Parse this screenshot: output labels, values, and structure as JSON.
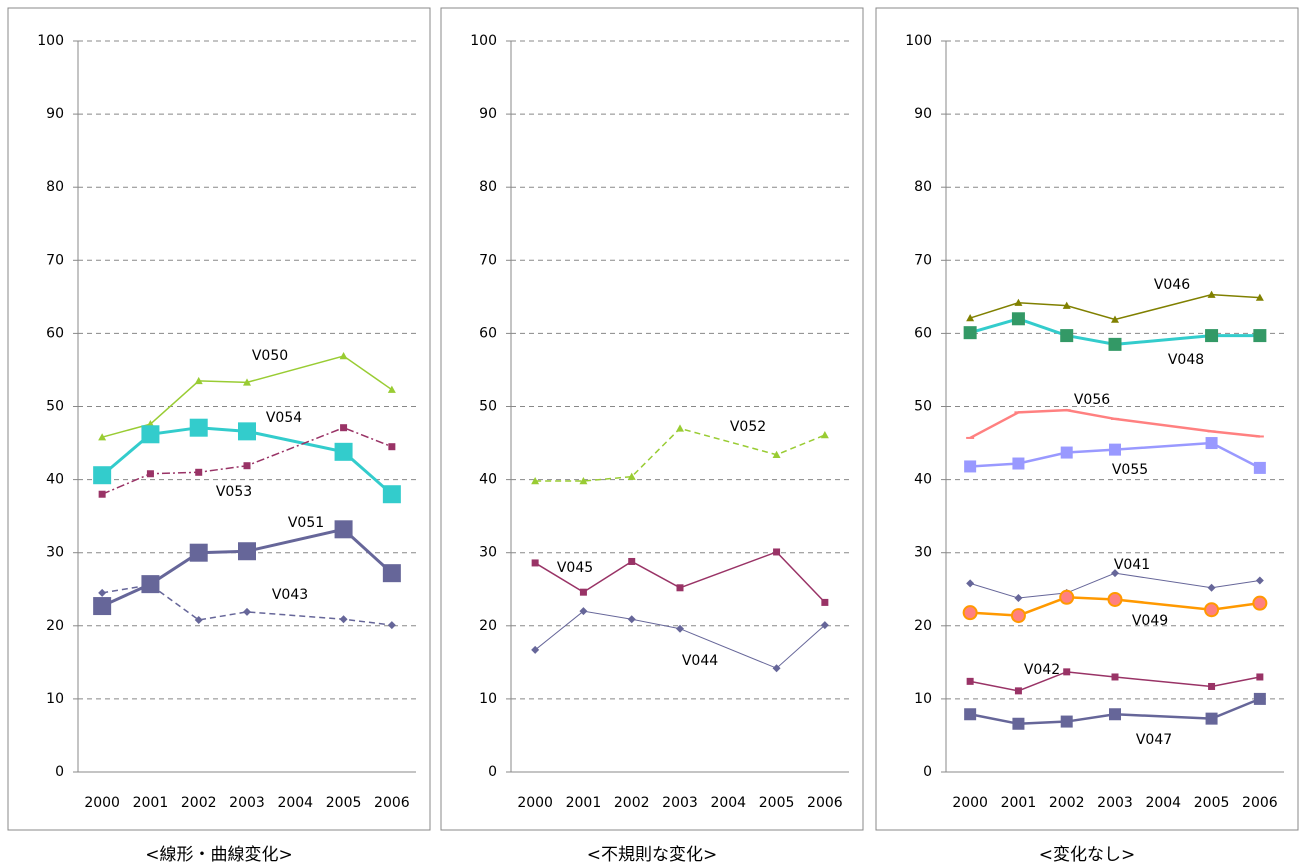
{
  "chart_data": [
    {
      "type": "line",
      "caption": "<線形・曲線変化>",
      "x": [
        2000,
        2001,
        2002,
        2003,
        2005,
        2006
      ],
      "xlim": [
        1999.5,
        2006.5
      ],
      "xticks": [
        2000,
        2001,
        2002,
        2003,
        2004,
        2005,
        2006
      ],
      "ylim": [
        0,
        100
      ],
      "yticks": [
        0,
        10,
        20,
        30,
        40,
        50,
        60,
        70,
        80,
        90,
        100
      ],
      "grid": true,
      "series": [
        {
          "name": "V050",
          "color": "#99cc33",
          "marker": "triangle",
          "marker_size": 8,
          "dash": "solid",
          "linewidth": 1.5,
          "values": [
            45.8,
            47.6,
            53.5,
            53.3,
            56.9,
            52.3
          ]
        },
        {
          "name": "V054",
          "color": "#33cccc",
          "marker": "square",
          "marker_size": 18,
          "dash": "solid",
          "linewidth": 3,
          "values": [
            40.6,
            46.2,
            47.1,
            46.6,
            43.8,
            38.0
          ]
        },
        {
          "name": "V053",
          "color": "#993366",
          "marker": "square",
          "marker_size": 7,
          "dash": "dashdot",
          "linewidth": 1.5,
          "values": [
            38.0,
            40.8,
            41.0,
            41.9,
            47.1,
            44.5
          ]
        },
        {
          "name": "V051",
          "color": "#666699",
          "marker": "square",
          "marker_size": 18,
          "dash": "solid",
          "linewidth": 3,
          "values": [
            22.7,
            25.7,
            30.0,
            30.2,
            33.2,
            27.2
          ]
        },
        {
          "name": "V043",
          "color": "#666699",
          "marker": "diamond",
          "marker_size": 8,
          "dash": "dashed",
          "linewidth": 1.5,
          "values": [
            24.5,
            25.6,
            20.8,
            21.9,
            20.9,
            20.1
          ]
        }
      ]
    },
    {
      "type": "line",
      "caption": "<不規則な変化>",
      "x": [
        2000,
        2001,
        2002,
        2003,
        2005,
        2006
      ],
      "xlim": [
        1999.5,
        2006.5
      ],
      "xticks": [
        2000,
        2001,
        2002,
        2003,
        2004,
        2005,
        2006
      ],
      "ylim": [
        0,
        100
      ],
      "yticks": [
        0,
        10,
        20,
        30,
        40,
        50,
        60,
        70,
        80,
        90,
        100
      ],
      "grid": true,
      "series": [
        {
          "name": "V052",
          "color": "#99cc33",
          "marker": "triangle",
          "marker_size": 8,
          "dash": "dashed",
          "linewidth": 1.5,
          "values": [
            39.8,
            39.8,
            40.4,
            47.0,
            43.4,
            46.1
          ]
        },
        {
          "name": "V045",
          "color": "#993366",
          "marker": "square",
          "marker_size": 7,
          "dash": "solid",
          "linewidth": 1.5,
          "values": [
            28.6,
            24.6,
            28.8,
            25.2,
            30.1,
            23.2
          ]
        },
        {
          "name": "V044",
          "color": "#666699",
          "marker": "diamond",
          "marker_size": 8,
          "dash": "solid",
          "linewidth": 1,
          "values": [
            16.7,
            22.0,
            20.9,
            19.6,
            14.2,
            20.1
          ]
        }
      ]
    },
    {
      "type": "line",
      "caption": "<変化なし>",
      "x": [
        2000,
        2001,
        2002,
        2003,
        2005,
        2006
      ],
      "xlim": [
        1999.5,
        2006.5
      ],
      "xticks": [
        2000,
        2001,
        2002,
        2003,
        2004,
        2005,
        2006
      ],
      "ylim": [
        0,
        100
      ],
      "yticks": [
        0,
        10,
        20,
        30,
        40,
        50,
        60,
        70,
        80,
        90,
        100
      ],
      "grid": true,
      "series": [
        {
          "name": "V046",
          "color": "#808000",
          "marker": "triangle",
          "marker_size": 8,
          "dash": "solid",
          "linewidth": 1.5,
          "values": [
            62.1,
            64.2,
            63.8,
            61.9,
            65.3,
            64.9
          ]
        },
        {
          "name": "V048",
          "color": "#33cccc",
          "marker_color": "#339966",
          "marker": "square",
          "marker_size": 13,
          "dash": "solid",
          "linewidth": 3,
          "values": [
            60.1,
            62.0,
            59.7,
            58.5,
            59.7,
            59.7
          ]
        },
        {
          "name": "V056",
          "color": "#ff8080",
          "marker": "dash",
          "marker_size": 8,
          "dash": "solid",
          "linewidth": 2.5,
          "values": [
            45.7,
            49.2,
            49.5,
            48.3,
            46.6,
            45.9
          ]
        },
        {
          "name": "V055",
          "color": "#9999ff",
          "marker": "square",
          "marker_size": 12,
          "dash": "solid",
          "linewidth": 2.5,
          "values": [
            41.8,
            42.2,
            43.7,
            44.1,
            45.0,
            41.6
          ]
        },
        {
          "name": "V041",
          "color": "#666699",
          "marker": "diamond",
          "marker_size": 8,
          "dash": "solid",
          "linewidth": 1,
          "values": [
            25.8,
            23.8,
            24.5,
            27.2,
            25.2,
            26.2
          ]
        },
        {
          "name": "V049",
          "color": "#ff9900",
          "marker_color": "#ff8080",
          "marker": "circle",
          "marker_size": 13,
          "dash": "solid",
          "linewidth": 2.5,
          "values": [
            21.8,
            21.4,
            23.9,
            23.6,
            22.2,
            23.1
          ]
        },
        {
          "name": "V042",
          "color": "#993366",
          "marker": "square",
          "marker_size": 7,
          "dash": "solid",
          "linewidth": 1.5,
          "values": [
            12.4,
            11.1,
            13.7,
            13.0,
            11.7,
            13.0
          ]
        },
        {
          "name": "V047",
          "color": "#666699",
          "marker": "square",
          "marker_size": 12,
          "dash": "solid",
          "linewidth": 2.5,
          "values": [
            7.9,
            6.6,
            6.9,
            7.9,
            7.3,
            10.0
          ]
        }
      ]
    }
  ]
}
